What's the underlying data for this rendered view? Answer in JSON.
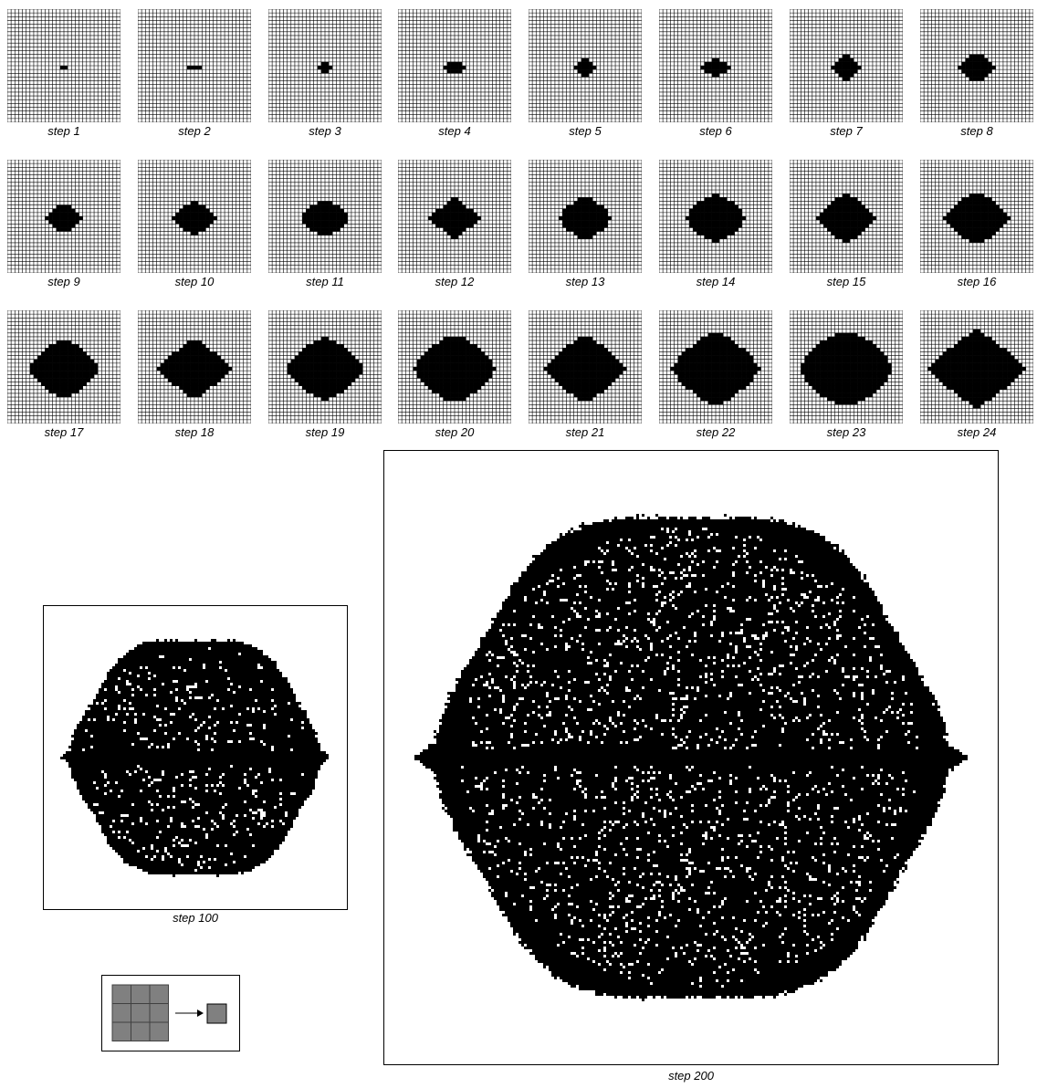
{
  "figure": {
    "small_steps": [
      {
        "label": "step 1",
        "step": 1
      },
      {
        "label": "step 2",
        "step": 2
      },
      {
        "label": "step 3",
        "step": 3
      },
      {
        "label": "step 4",
        "step": 4
      },
      {
        "label": "step 5",
        "step": 5
      },
      {
        "label": "step 6",
        "step": 6
      },
      {
        "label": "step 7",
        "step": 7
      },
      {
        "label": "step 8",
        "step": 8
      },
      {
        "label": "step 9",
        "step": 9
      },
      {
        "label": "step 10",
        "step": 10
      },
      {
        "label": "step 11",
        "step": 11
      },
      {
        "label": "step 12",
        "step": 12
      },
      {
        "label": "step 13",
        "step": 13
      },
      {
        "label": "step 14",
        "step": 14
      },
      {
        "label": "step 15",
        "step": 15
      },
      {
        "label": "step 16",
        "step": 16
      },
      {
        "label": "step 17",
        "step": 17
      },
      {
        "label": "step 18",
        "step": 18
      },
      {
        "label": "step 19",
        "step": 19
      },
      {
        "label": "step 20",
        "step": 20
      },
      {
        "label": "step 21",
        "step": 21
      },
      {
        "label": "step 22",
        "step": 22
      },
      {
        "label": "step 23",
        "step": 23
      },
      {
        "label": "step 24",
        "step": 24
      }
    ],
    "large_steps": [
      {
        "label": "step 100",
        "step": 100
      },
      {
        "label": "step 200",
        "step": 200
      }
    ],
    "rule_icon": "3x3-neighborhood-to-cell",
    "colors": {
      "cell_on": "#000000",
      "cell_off": "#ffffff",
      "grid_line": "#000000",
      "rule_cell": "#808080"
    }
  }
}
